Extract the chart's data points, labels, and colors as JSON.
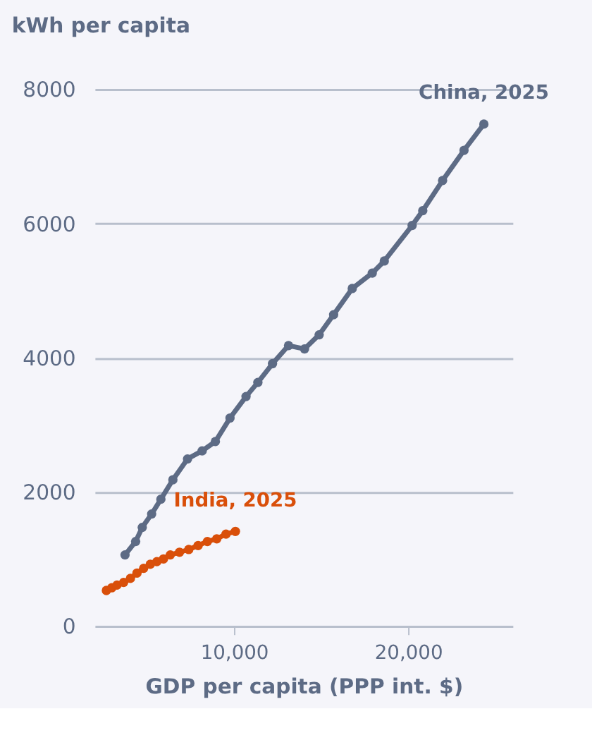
{
  "chart_data": {
    "type": "line",
    "ylabel": "kWh per capita",
    "xlabel": "GDP per capita (PPP int. $)",
    "xlim": [
      2000,
      26000
    ],
    "xticks": [
      {
        "value": 10000,
        "label": "10,000"
      },
      {
        "value": 20000,
        "label": "20,000"
      }
    ],
    "ylim": [
      0,
      8000
    ],
    "yticks": [
      0,
      2000,
      4000,
      6000,
      8000
    ],
    "grid": "y",
    "marker": "circle",
    "legend": false,
    "series": [
      {
        "color": "#5d6b85",
        "x": [
          3740,
          4350,
          4730,
          5270,
          5800,
          6490,
          7330,
          8170,
          8930,
          9770,
          10690,
          11370,
          12210,
          13130,
          14050,
          14890,
          15720,
          16790,
          17940,
          18630,
          20230,
          20840,
          21980,
          23210,
          24350
        ],
        "values": [
          1060,
          1260,
          1470,
          1670,
          1890,
          2180,
          2490,
          2610,
          2750,
          3100,
          3420,
          3630,
          3910,
          4180,
          4130,
          4340,
          4640,
          5030,
          5260,
          5440,
          5970,
          6190,
          6640,
          7090,
          7480
        ]
      },
      {
        "color": "#d94f0a",
        "x": [
          2670,
          2980,
          3280,
          3660,
          4050,
          4430,
          4810,
          5190,
          5570,
          5950,
          6340,
          6870,
          7400,
          7940,
          8470,
          9010,
          9540,
          10080
        ],
        "values": [
          530,
          570,
          610,
          650,
          710,
          790,
          860,
          920,
          960,
          1000,
          1060,
          1100,
          1140,
          1200,
          1260,
          1300,
          1370,
          1410
        ]
      }
    ],
    "annotations": [
      {
        "text": "China, 2025",
        "x": 24350,
        "y": 7480
      },
      {
        "text": "India, 2025",
        "x": 10080,
        "y": 1410
      }
    ]
  }
}
